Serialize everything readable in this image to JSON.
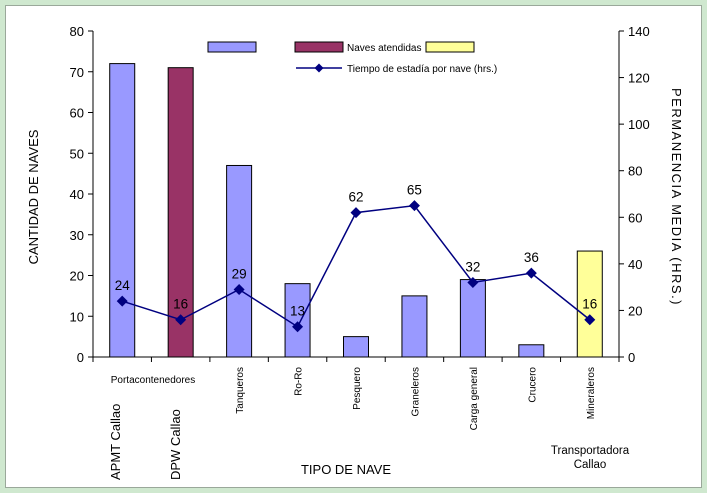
{
  "chart_data": {
    "type": "bar",
    "categories": [
      "Portacontenedores",
      "Portacontenedores",
      "Tanqueros",
      "Ro-Ro",
      "Pesquero",
      "Graneleros",
      "Carga general",
      "Crucero",
      "Mineraleros"
    ],
    "bar_series": [
      {
        "name": "",
        "color": "#9999ff",
        "values": [
          72,
          null,
          47,
          18,
          5,
          15,
          19,
          3,
          null
        ]
      },
      {
        "name": "Naves atendidas",
        "color": "#993366",
        "values": [
          null,
          71,
          null,
          null,
          null,
          null,
          null,
          null,
          null
        ]
      },
      {
        "name": "",
        "color": "#ffff99",
        "values": [
          null,
          null,
          null,
          null,
          null,
          null,
          null,
          null,
          26
        ]
      }
    ],
    "line_series": {
      "name": "Tiempo de estadía por nave (hrs.)",
      "color": "#000080",
      "axis": "right",
      "values": [
        24,
        16,
        29,
        13,
        62,
        65,
        32,
        36,
        16
      ]
    },
    "xlabel": "TIPO DE NAVE",
    "ylabel": "CANTIDAD DE NAVES",
    "y2label": "PERMANENCIA MEDIA (HRS.)",
    "ylim": [
      0,
      80
    ],
    "y2lim": [
      0,
      140
    ],
    "yticks": [
      0,
      10,
      20,
      30,
      40,
      50,
      60,
      70,
      80
    ],
    "y2ticks": [
      0,
      20,
      40,
      60,
      80,
      100,
      120,
      140
    ],
    "operator_labels": [
      "APMT Callao",
      "DPW Callao",
      "Transportadora Callao"
    ],
    "grid": false,
    "legend": "top"
  }
}
